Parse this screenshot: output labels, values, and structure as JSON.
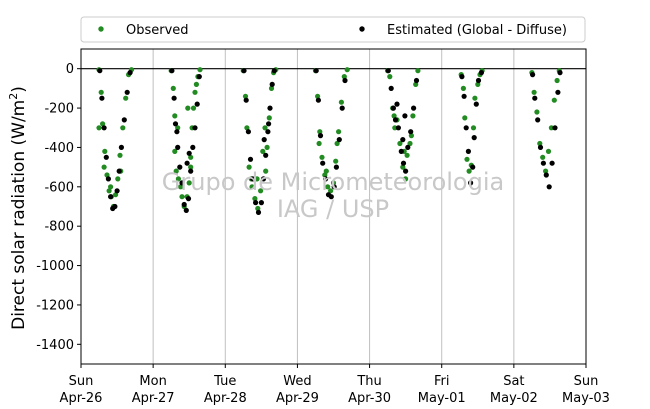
{
  "chart_data": {
    "type": "scatter",
    "title": "",
    "xlabel": "",
    "ylabel_text": "Direct solar radiation (W/m",
    "ylabel_sup": "2",
    "ylabel_close": ")",
    "ylim": [
      -1500,
      100
    ],
    "yticks": [
      0,
      -200,
      -400,
      -600,
      -800,
      -1000,
      -1200,
      -1400
    ],
    "xlim": [
      "2020-04-26",
      "2020-05-03"
    ],
    "xticks": [
      {
        "day": "Sun",
        "date": "Apr-26"
      },
      {
        "day": "Mon",
        "date": "Apr-27"
      },
      {
        "day": "Tue",
        "date": "Apr-28"
      },
      {
        "day": "Wed",
        "date": "Apr-29"
      },
      {
        "day": "Thu",
        "date": "Apr-30"
      },
      {
        "day": "Fri",
        "date": "May-01"
      },
      {
        "day": "Sat",
        "date": "May-02"
      },
      {
        "day": "Sun",
        "date": "May-03"
      }
    ],
    "grid": "vertical",
    "legend_position": "top",
    "watermark": [
      "Grupo de Micrometeorologia",
      "IAG / USP"
    ],
    "series": [
      {
        "name": "Observed",
        "color": "#228b22",
        "points": [
          [
            0.25,
            -5
          ],
          [
            0.28,
            -120
          ],
          [
            0.3,
            -280
          ],
          [
            0.33,
            -420
          ],
          [
            0.36,
            -540
          ],
          [
            0.39,
            -620
          ],
          [
            0.42,
            -650
          ],
          [
            0.45,
            -700
          ],
          [
            0.48,
            -640
          ],
          [
            0.51,
            -560
          ],
          [
            0.54,
            -440
          ],
          [
            0.58,
            -300
          ],
          [
            0.62,
            -150
          ],
          [
            0.66,
            -30
          ],
          [
            0.7,
            -5
          ],
          [
            0.25,
            -300
          ],
          [
            0.32,
            -500
          ],
          [
            0.41,
            -600
          ],
          [
            0.55,
            -520
          ],
          [
            1.25,
            -10
          ],
          [
            1.28,
            -100
          ],
          [
            1.3,
            -420
          ],
          [
            1.32,
            -520
          ],
          [
            1.35,
            -560
          ],
          [
            1.38,
            -600
          ],
          [
            1.4,
            -650
          ],
          [
            1.43,
            -700
          ],
          [
            1.47,
            -650
          ],
          [
            1.5,
            -580
          ],
          [
            1.52,
            -450
          ],
          [
            1.54,
            -300
          ],
          [
            1.56,
            -200
          ],
          [
            1.58,
            -120
          ],
          [
            1.6,
            -80
          ],
          [
            1.62,
            -40
          ],
          [
            1.65,
            -5
          ],
          [
            1.3,
            -240
          ],
          [
            1.34,
            -300
          ],
          [
            1.48,
            -200
          ],
          [
            1.52,
            -500
          ],
          [
            2.25,
            -10
          ],
          [
            2.28,
            -140
          ],
          [
            2.3,
            -300
          ],
          [
            2.33,
            -500
          ],
          [
            2.37,
            -600
          ],
          [
            2.41,
            -660
          ],
          [
            2.45,
            -710
          ],
          [
            2.49,
            -620
          ],
          [
            2.52,
            -420
          ],
          [
            2.55,
            -300
          ],
          [
            2.58,
            -400
          ],
          [
            2.61,
            -250
          ],
          [
            2.64,
            -100
          ],
          [
            2.67,
            -20
          ],
          [
            2.7,
            -5
          ],
          [
            2.36,
            -560
          ],
          [
            2.44,
            -560
          ],
          [
            2.56,
            -520
          ],
          [
            3.25,
            -10
          ],
          [
            3.28,
            -140
          ],
          [
            3.31,
            -320
          ],
          [
            3.34,
            -450
          ],
          [
            3.38,
            -540
          ],
          [
            3.42,
            -600
          ],
          [
            3.46,
            -620
          ],
          [
            3.5,
            -580
          ],
          [
            3.53,
            -470
          ],
          [
            3.57,
            -320
          ],
          [
            3.61,
            -170
          ],
          [
            3.65,
            -40
          ],
          [
            3.69,
            -5
          ],
          [
            3.3,
            -380
          ],
          [
            3.4,
            -520
          ],
          [
            3.55,
            -380
          ],
          [
            4.25,
            -10
          ],
          [
            4.28,
            -40
          ],
          [
            4.32,
            -200
          ],
          [
            4.35,
            -300
          ],
          [
            4.38,
            -260
          ],
          [
            4.42,
            -380
          ],
          [
            4.46,
            -500
          ],
          [
            4.5,
            -560
          ],
          [
            4.52,
            -440
          ],
          [
            4.56,
            -380
          ],
          [
            4.6,
            -240
          ],
          [
            4.64,
            -80
          ],
          [
            4.67,
            -10
          ],
          [
            4.34,
            -240
          ],
          [
            4.48,
            -420
          ],
          [
            4.58,
            -340
          ],
          [
            5.27,
            -30
          ],
          [
            5.3,
            -100
          ],
          [
            5.32,
            -250
          ],
          [
            5.35,
            -460
          ],
          [
            5.38,
            -520
          ],
          [
            5.41,
            -490
          ],
          [
            5.44,
            -300
          ],
          [
            5.46,
            -150
          ],
          [
            5.5,
            -80
          ],
          [
            5.53,
            -30
          ],
          [
            5.56,
            -10
          ],
          [
            6.25,
            -20
          ],
          [
            6.28,
            -120
          ],
          [
            6.32,
            -220
          ],
          [
            6.36,
            -380
          ],
          [
            6.4,
            -450
          ],
          [
            6.44,
            -520
          ],
          [
            6.48,
            -420
          ],
          [
            6.52,
            -300
          ],
          [
            6.56,
            -160
          ],
          [
            6.6,
            -60
          ],
          [
            6.63,
            -10
          ]
        ]
      },
      {
        "name": "Estimated (Global - Diffuse)",
        "color": "#000000",
        "points": [
          [
            0.26,
            -10
          ],
          [
            0.29,
            -150
          ],
          [
            0.32,
            -300
          ],
          [
            0.35,
            -450
          ],
          [
            0.38,
            -560
          ],
          [
            0.41,
            -650
          ],
          [
            0.44,
            -710
          ],
          [
            0.47,
            -700
          ],
          [
            0.5,
            -620
          ],
          [
            0.53,
            -520
          ],
          [
            0.56,
            -400
          ],
          [
            0.6,
            -260
          ],
          [
            0.64,
            -120
          ],
          [
            0.68,
            -20
          ],
          [
            1.26,
            -10
          ],
          [
            1.29,
            -150
          ],
          [
            1.31,
            -280
          ],
          [
            1.34,
            -400
          ],
          [
            1.37,
            -500
          ],
          [
            1.4,
            -580
          ],
          [
            1.43,
            -690
          ],
          [
            1.46,
            -720
          ],
          [
            1.49,
            -660
          ],
          [
            1.52,
            -520
          ],
          [
            1.55,
            -400
          ],
          [
            1.58,
            -300
          ],
          [
            1.61,
            -180
          ],
          [
            1.64,
            -40
          ],
          [
            1.33,
            -320
          ],
          [
            1.47,
            -480
          ],
          [
            1.5,
            -430
          ],
          [
            2.26,
            -10
          ],
          [
            2.29,
            -160
          ],
          [
            2.32,
            -320
          ],
          [
            2.35,
            -460
          ],
          [
            2.38,
            -560
          ],
          [
            2.42,
            -680
          ],
          [
            2.46,
            -730
          ],
          [
            2.5,
            -680
          ],
          [
            2.53,
            -560
          ],
          [
            2.56,
            -440
          ],
          [
            2.59,
            -320
          ],
          [
            2.62,
            -200
          ],
          [
            2.65,
            -80
          ],
          [
            2.68,
            -10
          ],
          [
            2.54,
            -360
          ],
          [
            2.6,
            -280
          ],
          [
            3.26,
            -10
          ],
          [
            3.29,
            -160
          ],
          [
            3.32,
            -340
          ],
          [
            3.35,
            -480
          ],
          [
            3.39,
            -560
          ],
          [
            3.43,
            -640
          ],
          [
            3.47,
            -650
          ],
          [
            3.51,
            -600
          ],
          [
            3.54,
            -500
          ],
          [
            3.58,
            -360
          ],
          [
            3.62,
            -200
          ],
          [
            3.66,
            -60
          ],
          [
            4.26,
            -10
          ],
          [
            4.3,
            -100
          ],
          [
            4.33,
            -200
          ],
          [
            4.36,
            -260
          ],
          [
            4.4,
            -300
          ],
          [
            4.44,
            -420
          ],
          [
            4.47,
            -480
          ],
          [
            4.5,
            -520
          ],
          [
            4.53,
            -400
          ],
          [
            4.57,
            -320
          ],
          [
            4.61,
            -200
          ],
          [
            4.65,
            -60
          ],
          [
            4.38,
            -180
          ],
          [
            4.46,
            -360
          ],
          [
            4.49,
            -240
          ],
          [
            5.28,
            -40
          ],
          [
            5.31,
            -140
          ],
          [
            5.34,
            -300
          ],
          [
            5.37,
            -420
          ],
          [
            5.4,
            -580
          ],
          [
            5.43,
            -500
          ],
          [
            5.45,
            -350
          ],
          [
            5.48,
            -180
          ],
          [
            5.51,
            -60
          ],
          [
            5.55,
            -20
          ],
          [
            6.26,
            -30
          ],
          [
            6.29,
            -150
          ],
          [
            6.33,
            -260
          ],
          [
            6.37,
            -400
          ],
          [
            6.41,
            -480
          ],
          [
            6.45,
            -540
          ],
          [
            6.49,
            -600
          ],
          [
            6.53,
            -480
          ],
          [
            6.57,
            -300
          ],
          [
            6.61,
            -120
          ],
          [
            6.64,
            -20
          ]
        ]
      }
    ]
  }
}
